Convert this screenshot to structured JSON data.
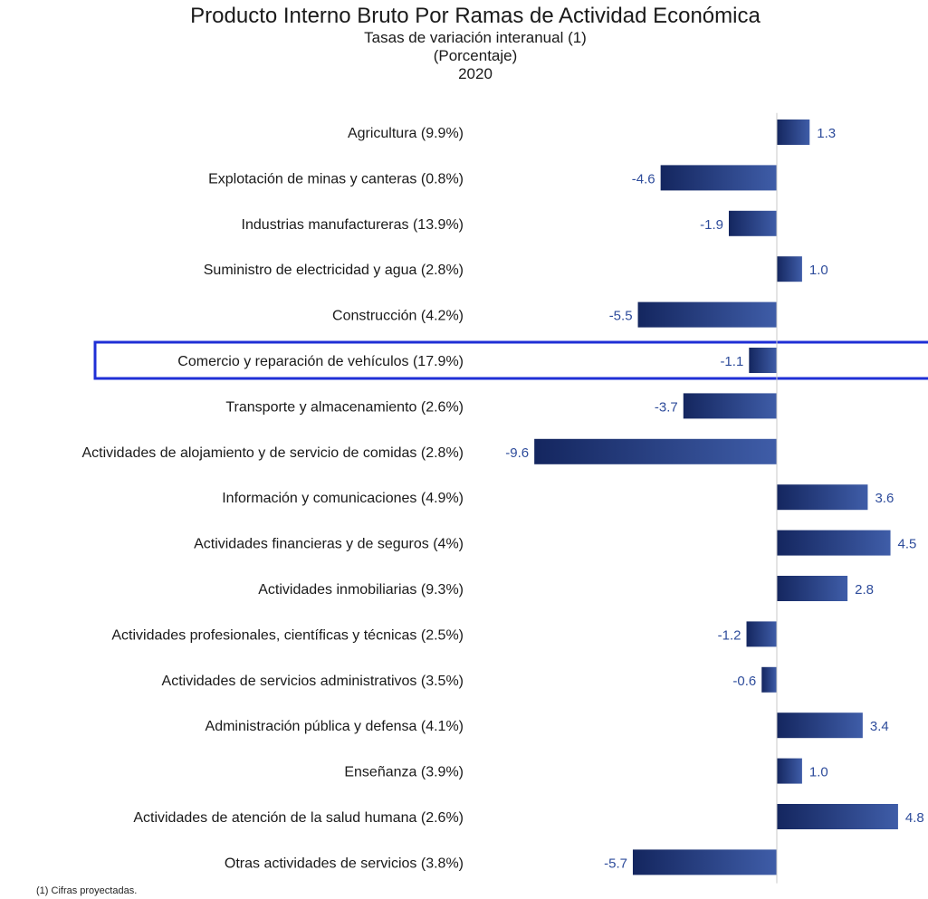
{
  "chart_data": {
    "type": "bar",
    "orientation": "horizontal",
    "title": "Producto Interno Bruto Por Ramas de Actividad Económica",
    "subtitle": "Tasas de variación interanual (1)",
    "unit": "(Porcentaje)",
    "period": "2020",
    "categories": [
      "Agricultura (9.9%)",
      "Explotación de minas y canteras (0.8%)",
      "Industrias manufactureras (13.9%)",
      "Suministro de electricidad y agua  (2.8%)",
      "Construcción (4.2%)",
      "Comercio y reparación de vehículos  (17.9%)",
      "Transporte y almacenamiento (2.6%)",
      "Actividades de alojamiento y de servicio de comidas (2.8%)",
      "Información y comunicaciones (4.9%)",
      "Actividades financieras y de seguros (4%)",
      "Actividades inmobiliarias (9.3%)",
      "Actividades profesionales, científicas y técnicas (2.5%)",
      "Actividades de servicios administrativos  (3.5%)",
      "Administración pública y defensa (4.1%)",
      "Enseñanza (3.9%)",
      "Actividades de atención de la salud humana (2.6%)",
      "Otras actividades de servicios (3.8%)"
    ],
    "values": [
      1.3,
      -4.6,
      -1.9,
      1.0,
      -5.5,
      -1.1,
      -3.7,
      -9.6,
      3.6,
      4.5,
      2.8,
      -1.2,
      -0.6,
      3.4,
      1.0,
      4.8,
      -5.7
    ],
    "labels": [
      "1.3",
      "-4.6",
      "-1.9",
      "1.0",
      "-5.5",
      "-1.1",
      "-3.7",
      "-9.6",
      "3.6",
      "4.5",
      "2.8",
      "-1.2",
      "-0.6",
      "3.4",
      "1.0",
      "4.8",
      "-5.7"
    ],
    "highlighted_category_index": 5,
    "xlim": [
      -10,
      6
    ],
    "grid": false,
    "legend": "none",
    "colors": {
      "bar_dark": "#14265f",
      "bar_light": "#3f5da8",
      "value_label": "#2e4c9b",
      "highlight_border": "#1f2fd6",
      "axis": "#c8c8c8"
    }
  },
  "footnote": "(1) Cifras proyectadas."
}
